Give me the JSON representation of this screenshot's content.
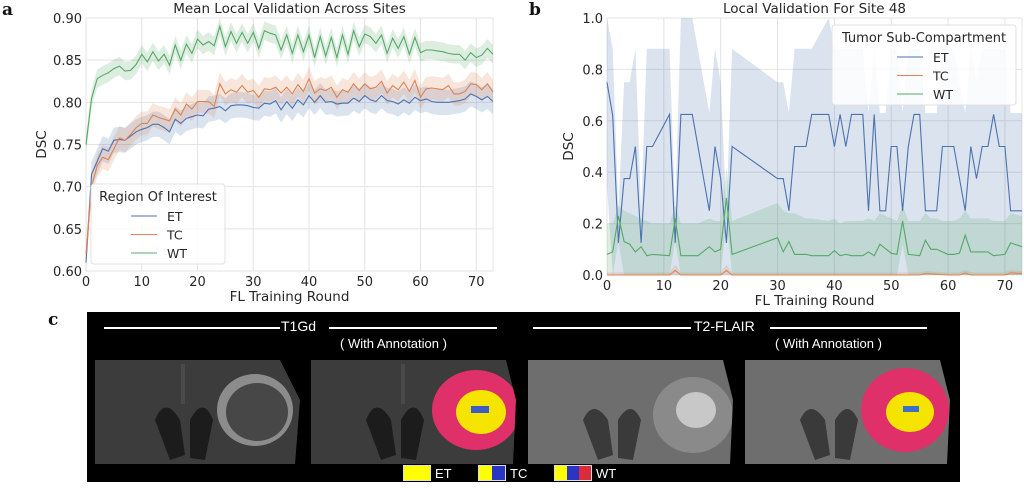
{
  "panels": {
    "a": "a",
    "b": "b",
    "c": "c"
  },
  "chart_data": [
    {
      "id": "a",
      "type": "line",
      "title": "Mean Local Validation Across Sites",
      "xlabel": "FL Training Round",
      "ylabel": "DSC",
      "xlim": [
        0,
        73
      ],
      "ylim": [
        0.6,
        0.9
      ],
      "xticks": [
        0,
        10,
        20,
        30,
        40,
        50,
        60,
        70
      ],
      "yticks": [
        "0.60",
        "0.65",
        "0.70",
        "0.75",
        "0.80",
        "0.85",
        "0.90"
      ],
      "grid": true,
      "legend": {
        "title": "Region Of Interest",
        "placement": "lower-left"
      },
      "band": "shaded confidence interval around each series",
      "series": [
        {
          "name": "ET",
          "color": "#4c72b0",
          "band_halfwidth": 0.015,
          "x": [
            0,
            1,
            2,
            3,
            4,
            5,
            6,
            7,
            8,
            9,
            10,
            11,
            12,
            13,
            14,
            15,
            16,
            17,
            18,
            19,
            20,
            21,
            22,
            23,
            24,
            25,
            26,
            27,
            28,
            29,
            30,
            31,
            32,
            33,
            34,
            35,
            36,
            37,
            38,
            39,
            40,
            41,
            42,
            43,
            44,
            45,
            46,
            47,
            48,
            49,
            50,
            51,
            52,
            53,
            54,
            55,
            56,
            57,
            58,
            59,
            60,
            61,
            62,
            63,
            64,
            65,
            66,
            67,
            68,
            69,
            70,
            71,
            72,
            73
          ],
          "values": [
            0.61,
            0.715,
            0.73,
            0.745,
            0.742,
            0.755,
            0.756,
            0.755,
            0.76,
            0.765,
            0.768,
            0.77,
            0.774,
            0.774,
            0.77,
            0.765,
            0.78,
            0.775,
            0.781,
            0.783,
            0.785,
            0.784,
            0.792,
            0.793,
            0.795,
            0.79,
            0.796,
            0.797,
            0.797,
            0.796,
            0.794,
            0.793,
            0.799,
            0.798,
            0.802,
            0.791,
            0.801,
            0.793,
            0.803,
            0.797,
            0.808,
            0.8,
            0.808,
            0.8,
            0.801,
            0.798,
            0.799,
            0.799,
            0.805,
            0.801,
            0.808,
            0.803,
            0.801,
            0.808,
            0.802,
            0.801,
            0.798,
            0.803,
            0.799,
            0.806,
            0.802,
            0.804,
            0.801,
            0.8,
            0.8,
            0.8,
            0.801,
            0.802,
            0.804,
            0.81,
            0.807,
            0.803,
            0.807,
            0.801
          ]
        },
        {
          "name": "TC",
          "color": "#dd8452",
          "band_halfwidth": 0.014,
          "x": [
            0,
            1,
            2,
            3,
            4,
            5,
            6,
            7,
            8,
            9,
            10,
            11,
            12,
            13,
            14,
            15,
            16,
            17,
            18,
            19,
            20,
            21,
            22,
            23,
            24,
            25,
            26,
            27,
            28,
            29,
            30,
            31,
            32,
            33,
            34,
            35,
            36,
            37,
            38,
            39,
            40,
            41,
            42,
            43,
            44,
            45,
            46,
            47,
            48,
            49,
            50,
            51,
            52,
            53,
            54,
            55,
            56,
            57,
            58,
            59,
            60,
            61,
            62,
            63,
            64,
            65,
            66,
            67,
            68,
            69,
            70,
            71,
            72,
            73
          ],
          "values": [
            0.62,
            0.7,
            0.725,
            0.735,
            0.732,
            0.745,
            0.758,
            0.755,
            0.762,
            0.77,
            0.775,
            0.775,
            0.785,
            0.782,
            0.78,
            0.778,
            0.792,
            0.785,
            0.798,
            0.792,
            0.801,
            0.801,
            0.801,
            0.795,
            0.822,
            0.81,
            0.815,
            0.812,
            0.82,
            0.812,
            0.814,
            0.806,
            0.816,
            0.815,
            0.818,
            0.811,
            0.818,
            0.81,
            0.821,
            0.813,
            0.828,
            0.811,
            0.816,
            0.814,
            0.818,
            0.806,
            0.815,
            0.812,
            0.822,
            0.814,
            0.822,
            0.816,
            0.818,
            0.825,
            0.811,
            0.82,
            0.815,
            0.824,
            0.813,
            0.826,
            0.806,
            0.816,
            0.817,
            0.816,
            0.815,
            0.82,
            0.81,
            0.81,
            0.813,
            0.822,
            0.821,
            0.815,
            0.822,
            0.812
          ]
        },
        {
          "name": "WT",
          "color": "#55a868",
          "band_halfwidth": 0.011,
          "x": [
            0,
            1,
            2,
            3,
            4,
            5,
            6,
            7,
            8,
            9,
            10,
            11,
            12,
            13,
            14,
            15,
            16,
            17,
            18,
            19,
            20,
            21,
            22,
            23,
            24,
            25,
            26,
            27,
            28,
            29,
            30,
            31,
            32,
            33,
            34,
            35,
            36,
            37,
            38,
            39,
            40,
            41,
            42,
            43,
            44,
            45,
            46,
            47,
            48,
            49,
            50,
            51,
            52,
            53,
            54,
            55,
            56,
            57,
            58,
            59,
            60,
            61,
            62,
            63,
            64,
            65,
            66,
            67,
            68,
            69,
            70,
            71,
            72,
            73
          ],
          "values": [
            0.75,
            0.805,
            0.828,
            0.832,
            0.835,
            0.84,
            0.843,
            0.837,
            0.838,
            0.845,
            0.857,
            0.848,
            0.86,
            0.849,
            0.857,
            0.844,
            0.868,
            0.85,
            0.869,
            0.858,
            0.875,
            0.868,
            0.872,
            0.867,
            0.89,
            0.866,
            0.884,
            0.87,
            0.883,
            0.87,
            0.883,
            0.864,
            0.885,
            0.882,
            0.88,
            0.862,
            0.88,
            0.858,
            0.88,
            0.86,
            0.88,
            0.853,
            0.878,
            0.855,
            0.877,
            0.853,
            0.88,
            0.857,
            0.885,
            0.866,
            0.881,
            0.878,
            0.87,
            0.88,
            0.858,
            0.876,
            0.864,
            0.878,
            0.857,
            0.877,
            0.859,
            0.862,
            0.862,
            0.861,
            0.86,
            0.858,
            0.857,
            0.857,
            0.85,
            0.859,
            0.853,
            0.856,
            0.864,
            0.857
          ]
        }
      ]
    },
    {
      "id": "b",
      "type": "line",
      "title": "Local Validation For Site 48",
      "xlabel": "FL Training Round",
      "ylabel": "DSC",
      "xlim": [
        0,
        73
      ],
      "ylim": [
        0.0,
        1.0
      ],
      "xticks": [
        0,
        10,
        20,
        30,
        40,
        50,
        60,
        70
      ],
      "yticks": [
        "0.0",
        "0.2",
        "0.4",
        "0.6",
        "0.8",
        "1.0"
      ],
      "grid": true,
      "legend": {
        "title": "Tumor Sub-Compartment",
        "placement": "top-right"
      },
      "band": "shaded confidence interval around each series",
      "series": [
        {
          "name": "ET",
          "color": "#4c72b0",
          "x": [
            0,
            1,
            2,
            3,
            4,
            5,
            6,
            7,
            8,
            11,
            12,
            13,
            15,
            18,
            19,
            20,
            21,
            22,
            30,
            31,
            32,
            33,
            35,
            36,
            39,
            40,
            41,
            42,
            43,
            45,
            46,
            47,
            48,
            49,
            50,
            51,
            52,
            53,
            54,
            55,
            56,
            57,
            58,
            59,
            61,
            62,
            63,
            64,
            65,
            66,
            67,
            68,
            69,
            70,
            71,
            73
          ],
          "values": [
            0.75,
            0.62,
            0.125,
            0.375,
            0.375,
            0.5,
            0.125,
            0.5,
            0.5,
            0.625,
            0.125,
            0.625,
            0.625,
            0.25,
            0.5,
            0.375,
            0.125,
            0.5,
            0.375,
            0.375,
            0.25,
            0.5,
            0.5,
            0.625,
            0.625,
            0.5,
            0.625,
            0.5,
            0.625,
            0.625,
            0.25,
            0.625,
            0.25,
            0.25,
            0.5,
            0.5,
            0.25,
            0.5,
            0.625,
            0.625,
            0.25,
            0.25,
            0.25,
            0.5,
            0.5,
            0.375,
            0.25,
            0.5,
            0.375,
            0.5,
            0.5,
            0.625,
            0.5,
            0.5,
            0.25,
            0.25
          ],
          "band_lo": [
            0.35,
            0.0,
            0.0,
            0.0,
            0.0,
            0.0,
            0.0,
            0.0,
            0.0,
            0.0,
            0.0,
            0.0,
            0.0,
            0.0,
            0.0,
            0.0,
            0.0,
            0.0,
            0.0,
            0.0,
            0.0,
            0.0,
            0.0,
            0.0,
            0.0,
            0.0,
            0.0,
            0.0,
            0.0,
            0.0,
            0.0,
            0.0,
            0.0,
            0.0,
            0.0,
            0.0,
            0.0,
            0.0,
            0.0,
            0.0,
            0.0,
            0.0,
            0.0,
            0.0,
            0.0,
            0.0,
            0.0,
            0.0,
            0.0,
            0.0,
            0.0,
            0.0,
            0.0,
            0.0,
            0.0,
            0.0
          ],
          "band_hi": [
            1.0,
            0.88,
            0.25,
            0.75,
            0.75,
            0.88,
            0.25,
            0.88,
            0.88,
            0.88,
            0.25,
            1.0,
            1.0,
            0.63,
            0.88,
            0.75,
            0.25,
            0.88,
            0.75,
            0.75,
            0.63,
            0.88,
            0.88,
            0.88,
            1.0,
            0.88,
            0.88,
            0.88,
            0.88,
            0.88,
            0.63,
            0.88,
            0.63,
            0.63,
            0.88,
            0.88,
            0.63,
            0.88,
            0.88,
            0.88,
            0.63,
            0.63,
            0.63,
            0.88,
            0.88,
            0.75,
            0.63,
            0.88,
            0.75,
            0.88,
            0.88,
            0.88,
            0.88,
            0.88,
            0.63,
            0.63
          ]
        },
        {
          "name": "TC",
          "color": "#dd8452",
          "x": [
            0,
            11,
            12,
            13,
            20,
            21,
            22,
            30,
            40,
            50,
            55,
            56,
            60,
            62,
            63,
            64,
            70,
            71,
            73
          ],
          "values": [
            0.0,
            0.0,
            0.018,
            0.0,
            0.0,
            0.018,
            0.0,
            0.0,
            0.0,
            0.0,
            0.0,
            0.006,
            0.0,
            0.0,
            0.008,
            0.0,
            0.0,
            0.008,
            0.006
          ],
          "band_lo": [
            0,
            0,
            0,
            0,
            0,
            0,
            0,
            0,
            0,
            0,
            0,
            0,
            0,
            0,
            0,
            0,
            0,
            0,
            0
          ],
          "band_hi": [
            0.01,
            0.01,
            0.04,
            0.01,
            0.01,
            0.04,
            0.01,
            0.01,
            0.01,
            0.01,
            0.01,
            0.015,
            0.01,
            0.01,
            0.02,
            0.01,
            0.01,
            0.02,
            0.015
          ]
        },
        {
          "name": "WT",
          "color": "#55a868",
          "x": [
            0,
            1,
            2,
            3,
            4,
            5,
            6,
            7,
            8,
            11,
            12,
            13,
            16,
            18,
            19,
            20,
            21,
            22,
            30,
            31,
            32,
            33,
            35,
            36,
            39,
            40,
            41,
            42,
            43,
            45,
            46,
            47,
            48,
            50,
            51,
            52,
            53,
            55,
            56,
            57,
            58,
            59,
            60,
            61,
            62,
            63,
            64,
            65,
            66,
            67,
            68,
            70,
            71,
            73
          ],
          "values": [
            0.08,
            0.09,
            0.23,
            0.13,
            0.12,
            0.09,
            0.11,
            0.075,
            0.08,
            0.075,
            0.22,
            0.075,
            0.075,
            0.11,
            0.09,
            0.1,
            0.3,
            0.08,
            0.145,
            0.09,
            0.13,
            0.08,
            0.08,
            0.075,
            0.075,
            0.095,
            0.075,
            0.08,
            0.075,
            0.075,
            0.09,
            0.075,
            0.12,
            0.085,
            0.08,
            0.21,
            0.08,
            0.075,
            0.135,
            0.1,
            0.1,
            0.09,
            0.08,
            0.08,
            0.085,
            0.155,
            0.09,
            0.09,
            0.09,
            0.09,
            0.075,
            0.08,
            0.125,
            0.11
          ],
          "band_lo": [
            0,
            0,
            0.13,
            0,
            0,
            0,
            0,
            0,
            0,
            0,
            0.13,
            0,
            0,
            0,
            0,
            0,
            0.22,
            0,
            0,
            0,
            0,
            0,
            0,
            0,
            0,
            0,
            0,
            0,
            0,
            0,
            0,
            0,
            0,
            0,
            0,
            0.12,
            0,
            0,
            0,
            0,
            0,
            0,
            0,
            0,
            0,
            0,
            0,
            0,
            0,
            0,
            0,
            0,
            0,
            0
          ],
          "band_hi": [
            0.2,
            0.2,
            0.27,
            0.25,
            0.24,
            0.23,
            0.22,
            0.21,
            0.2,
            0.2,
            0.27,
            0.2,
            0.2,
            0.22,
            0.21,
            0.21,
            0.42,
            0.21,
            0.28,
            0.25,
            0.24,
            0.24,
            0.22,
            0.22,
            0.21,
            0.22,
            0.2,
            0.21,
            0.21,
            0.21,
            0.22,
            0.21,
            0.24,
            0.22,
            0.21,
            0.27,
            0.21,
            0.21,
            0.24,
            0.22,
            0.22,
            0.21,
            0.21,
            0.21,
            0.22,
            0.25,
            0.22,
            0.22,
            0.22,
            0.22,
            0.21,
            0.21,
            0.24,
            0.23
          ]
        }
      ]
    }
  ],
  "mri": {
    "groups": [
      {
        "title": "T1Gd",
        "subtitle": "( With Annotation )"
      },
      {
        "title": "T2-FLAIR",
        "subtitle": "( With Annotation )"
      }
    ],
    "slices": [
      {
        "label": "T1Gd raw",
        "annotated": false
      },
      {
        "label": "T1Gd annotated",
        "annotated": true
      },
      {
        "label": "T2-FLAIR raw",
        "annotated": false
      },
      {
        "label": "T2-FLAIR annotated",
        "annotated": true
      }
    ],
    "legend": [
      {
        "label": "ET",
        "colors": [
          "#ffff00"
        ]
      },
      {
        "label": "TC",
        "colors": [
          "#ffff00",
          "#2b35c4"
        ]
      },
      {
        "label": "WT",
        "colors": [
          "#ffff00",
          "#2b35c4",
          "#dc2b3a"
        ]
      }
    ]
  }
}
